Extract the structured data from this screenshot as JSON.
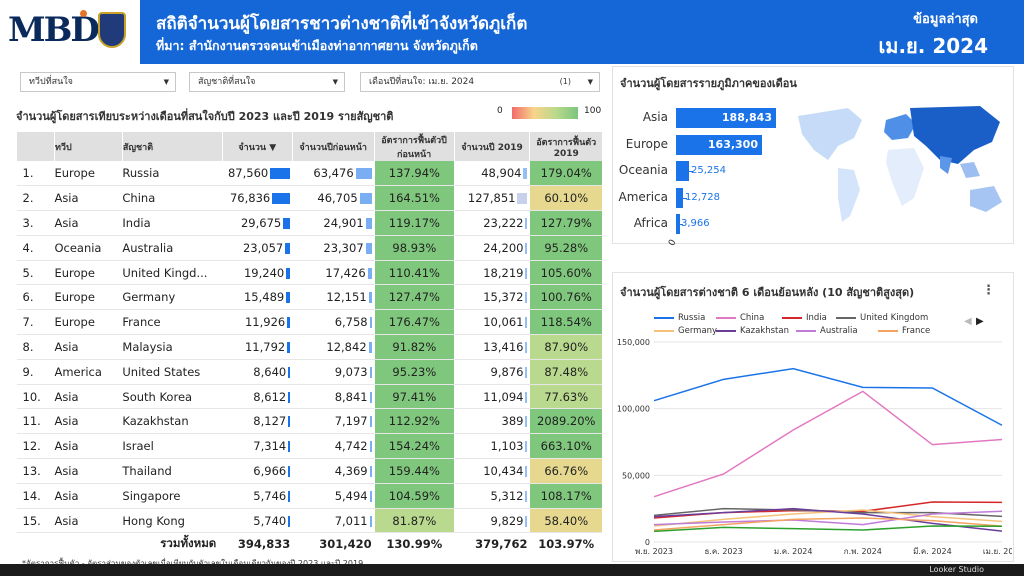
{
  "header": {
    "title": "สถิติจำนวนผู้โดยสารชาวต่างชาติที่เข้าจังหวัดภูเก็ต",
    "subtitle": "ที่มา: สำนักงานตรวจคนเข้าเมืองท่าอากาศยาน จังหวัดภูเก็ต",
    "latest_label": "ข้อมูลล่าสุด",
    "latest_month": "เม.ย. 2024",
    "logo_text": "MBD"
  },
  "filters": {
    "continent": "ทวีปที่สนใจ",
    "nationality": "สัญชาติที่สนใจ",
    "month": "เดือนปีที่สนใจ: เม.ย. 2024",
    "month_count": "(1)"
  },
  "table": {
    "title": "จำนวนผู้โดยสารเทียบระหว่างเดือนที่สนใจกับปี 2023 และปี 2019 รายสัญชาติ",
    "legend_min": "0",
    "legend_max": "100",
    "headers": [
      "ทวีป",
      "สัญชาติ",
      "จำนวน ▼",
      "จำนวนปีก่อนหน้า",
      "อัตราการฟื้นตัวปีก่อนหน้า",
      "จำนวนปี 2019",
      "อัตราการฟื้นตัว 2019"
    ],
    "rows": [
      {
        "idx": "1.",
        "continent": "Europe",
        "nation": "Russia",
        "count": "87,560",
        "prev": "63,476",
        "prev_rate": "137.94%",
        "y2019": "48,904",
        "rate2019": "179.04%"
      },
      {
        "idx": "2.",
        "continent": "Asia",
        "nation": "China",
        "count": "76,836",
        "prev": "46,705",
        "prev_rate": "164.51%",
        "y2019": "127,851",
        "rate2019": "60.10%"
      },
      {
        "idx": "3.",
        "continent": "Asia",
        "nation": "India",
        "count": "29,675",
        "prev": "24,901",
        "prev_rate": "119.17%",
        "y2019": "23,222",
        "rate2019": "127.79%"
      },
      {
        "idx": "4.",
        "continent": "Oceania",
        "nation": "Australia",
        "count": "23,057",
        "prev": "23,307",
        "prev_rate": "98.93%",
        "y2019": "24,200",
        "rate2019": "95.28%"
      },
      {
        "idx": "5.",
        "continent": "Europe",
        "nation": "United Kingd...",
        "count": "19,240",
        "prev": "17,426",
        "prev_rate": "110.41%",
        "y2019": "18,219",
        "rate2019": "105.60%"
      },
      {
        "idx": "6.",
        "continent": "Europe",
        "nation": "Germany",
        "count": "15,489",
        "prev": "12,151",
        "prev_rate": "127.47%",
        "y2019": "15,372",
        "rate2019": "100.76%"
      },
      {
        "idx": "7.",
        "continent": "Europe",
        "nation": "France",
        "count": "11,926",
        "prev": "6,758",
        "prev_rate": "176.47%",
        "y2019": "10,061",
        "rate2019": "118.54%"
      },
      {
        "idx": "8.",
        "continent": "Asia",
        "nation": "Malaysia",
        "count": "11,792",
        "prev": "12,842",
        "prev_rate": "91.82%",
        "y2019": "13,416",
        "rate2019": "87.90%"
      },
      {
        "idx": "9.",
        "continent": "America",
        "nation": "United States",
        "count": "8,640",
        "prev": "9,073",
        "prev_rate": "95.23%",
        "y2019": "9,876",
        "rate2019": "87.48%"
      },
      {
        "idx": "10.",
        "continent": "Asia",
        "nation": "South Korea",
        "count": "8,612",
        "prev": "8,841",
        "prev_rate": "97.41%",
        "y2019": "11,094",
        "rate2019": "77.63%"
      },
      {
        "idx": "11.",
        "continent": "Asia",
        "nation": "Kazakhstan",
        "count": "8,127",
        "prev": "7,197",
        "prev_rate": "112.92%",
        "y2019": "389",
        "rate2019": "2089.20%"
      },
      {
        "idx": "12.",
        "continent": "Asia",
        "nation": "Israel",
        "count": "7,314",
        "prev": "4,742",
        "prev_rate": "154.24%",
        "y2019": "1,103",
        "rate2019": "663.10%"
      },
      {
        "idx": "13.",
        "continent": "Asia",
        "nation": "Thailand",
        "count": "6,966",
        "prev": "4,369",
        "prev_rate": "159.44%",
        "y2019": "10,434",
        "rate2019": "66.76%"
      },
      {
        "idx": "14.",
        "continent": "Asia",
        "nation": "Singapore",
        "count": "5,746",
        "prev": "5,494",
        "prev_rate": "104.59%",
        "y2019": "5,312",
        "rate2019": "108.17%"
      },
      {
        "idx": "15.",
        "continent": "Asia",
        "nation": "Hong Kong",
        "count": "5,740",
        "prev": "7,011",
        "prev_rate": "81.87%",
        "y2019": "9,829",
        "rate2019": "58.40%"
      }
    ],
    "total": {
      "label": "รวมทั้งหมด",
      "count": "394,833",
      "prev": "301,420",
      "prev_rate": "130.99%",
      "y2019": "379,762",
      "rate2019": "103.97%"
    },
    "footnote": "*อัตราการฟื้นตัว - อัตราส่วนของตัวเลขเมื่อเทียบกับตัวเลขในเดือนเดียวกันของปี 2023 และปี 2019"
  },
  "regions": {
    "title": "จำนวนผู้โดยสารรายภูมิภาคของเดือน",
    "items": [
      {
        "name": "Asia",
        "value": 188843,
        "label": "188,843"
      },
      {
        "name": "Europe",
        "value": 163300,
        "label": "163,300"
      },
      {
        "name": "Oceania",
        "value": 25254,
        "label": "25,254"
      },
      {
        "name": "America",
        "value": 12728,
        "label": "12,728"
      },
      {
        "name": "Africa",
        "value": 3966,
        "label": "3,966"
      }
    ],
    "axis_zero": "0"
  },
  "line_chart": {
    "title": "จำนวนผู้โดยสารต่างชาติ 6 เดือนย้อนหลัง (10 สัญชาติสูงสุด)"
  },
  "chart_data": {
    "type": "line",
    "categories": [
      "พ.ย. 2023",
      "ธ.ค. 2023",
      "ม.ค. 2024",
      "ก.พ. 2024",
      "มี.ค. 2024",
      "เม.ย. 2024"
    ],
    "x_tick_labels": [
      "พ.ย. 2023",
      "ธ.ค. 2023",
      "ม.ค. 2024",
      "ก.พ. 2024",
      "มี.ค. 2024",
      "เม.ย. 20..."
    ],
    "y_ticks": [
      "0",
      "50,000",
      "100,000",
      "150,000"
    ],
    "ylim": [
      0,
      150000
    ],
    "series": [
      {
        "name": "Russia",
        "color": "#1a73e8",
        "values": [
          106000,
          122000,
          130000,
          116000,
          115500,
          87560
        ]
      },
      {
        "name": "China",
        "color": "#e377c2",
        "values": [
          34000,
          51000,
          84000,
          113000,
          73000,
          76836
        ]
      },
      {
        "name": "India",
        "color": "#d62728",
        "values": [
          18000,
          22000,
          23500,
          23000,
          30000,
          29675
        ]
      },
      {
        "name": "United Kingdom",
        "color": "#666666",
        "values": [
          20000,
          25000,
          24000,
          22000,
          22000,
          19240
        ]
      },
      {
        "name": "Germany",
        "color": "#f5c27a",
        "values": [
          12000,
          17000,
          21000,
          24000,
          19000,
          15489
        ]
      },
      {
        "name": "Kazakhstan",
        "color": "#6a3d9a",
        "values": [
          19000,
          22000,
          25000,
          21000,
          14000,
          8127
        ]
      },
      {
        "name": "Australia",
        "color": "#c07bd8",
        "values": [
          13000,
          15000,
          16500,
          13000,
          21000,
          23057
        ]
      },
      {
        "name": "France",
        "color": "#f4a460",
        "values": [
          9000,
          13000,
          17000,
          18000,
          16000,
          11926
        ]
      },
      {
        "name": "Malaysia",
        "color": "#2ca02c",
        "values": [
          8000,
          11000,
          10000,
          9000,
          12000,
          11792
        ]
      }
    ],
    "legend": [
      "Russia",
      "China",
      "India",
      "United Kingdom",
      "Germany",
      "Kazakhstan",
      "Australia",
      "France"
    ]
  },
  "footer": {
    "text": "Looker Studio"
  }
}
